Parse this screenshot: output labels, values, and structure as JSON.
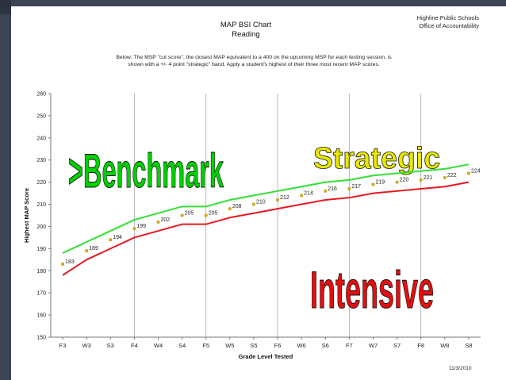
{
  "header": {
    "title": "MAP BSI Chart",
    "subtitle": "Reading",
    "org_line1": "Highline Public Schools",
    "org_line2": "Office of Accountability",
    "description_line1": "Below: The MSP \"cut score\", the closest MAP equivalent to a 400 on the upcoming MSP for each testing session, is",
    "description_line2": "shown with a +/- 4 point \"strategic\" band. Apply a student's highest of their three most recent MAP scores.",
    "date": "11/3/2010"
  },
  "colors": {
    "upper_line": "#33e033",
    "lower_line": "#e8191f",
    "marker": "#e6b800",
    "benchmark_text": "#00d000",
    "strategic_text": "#e8e800",
    "intensive_text": "#e01010",
    "sidebar": "#3b4556"
  },
  "chart_data": {
    "type": "line",
    "xlabel": "Grade Level Tested",
    "ylabel": "Highest MAP Score",
    "ylim": [
      150,
      260
    ],
    "yticks": [
      150,
      160,
      170,
      180,
      190,
      200,
      210,
      220,
      230,
      240,
      250,
      260
    ],
    "grid": "vertical lines at F4, F5, F6, F7, F8",
    "categories": [
      "F3",
      "W3",
      "S3",
      "F4",
      "W4",
      "S4",
      "F5",
      "W5",
      "S5",
      "F6",
      "W6",
      "S6",
      "F7",
      "W7",
      "S7",
      "F8",
      "W8",
      "S8"
    ],
    "series": [
      {
        "values": [
          188,
          193,
          198,
          203,
          206,
          209,
          209,
          212,
          214,
          216,
          218,
          220,
          221,
          223,
          224,
          225,
          226,
          228
        ]
      },
      {
        "values": [
          183,
          189,
          194,
          199,
          202,
          205,
          205,
          208,
          210,
          212,
          214,
          216,
          217,
          219,
          220,
          221,
          222,
          224
        ],
        "data_labels": true
      },
      {
        "values": [
          178,
          185,
          190,
          195,
          198,
          201,
          201,
          204,
          206,
          208,
          210,
          212,
          213,
          215,
          216,
          217,
          218,
          220
        ]
      }
    ],
    "annotations": [
      {
        "text": ">Benchmark"
      },
      {
        "text": "Strategic"
      },
      {
        "text": "Intensive"
      }
    ]
  }
}
